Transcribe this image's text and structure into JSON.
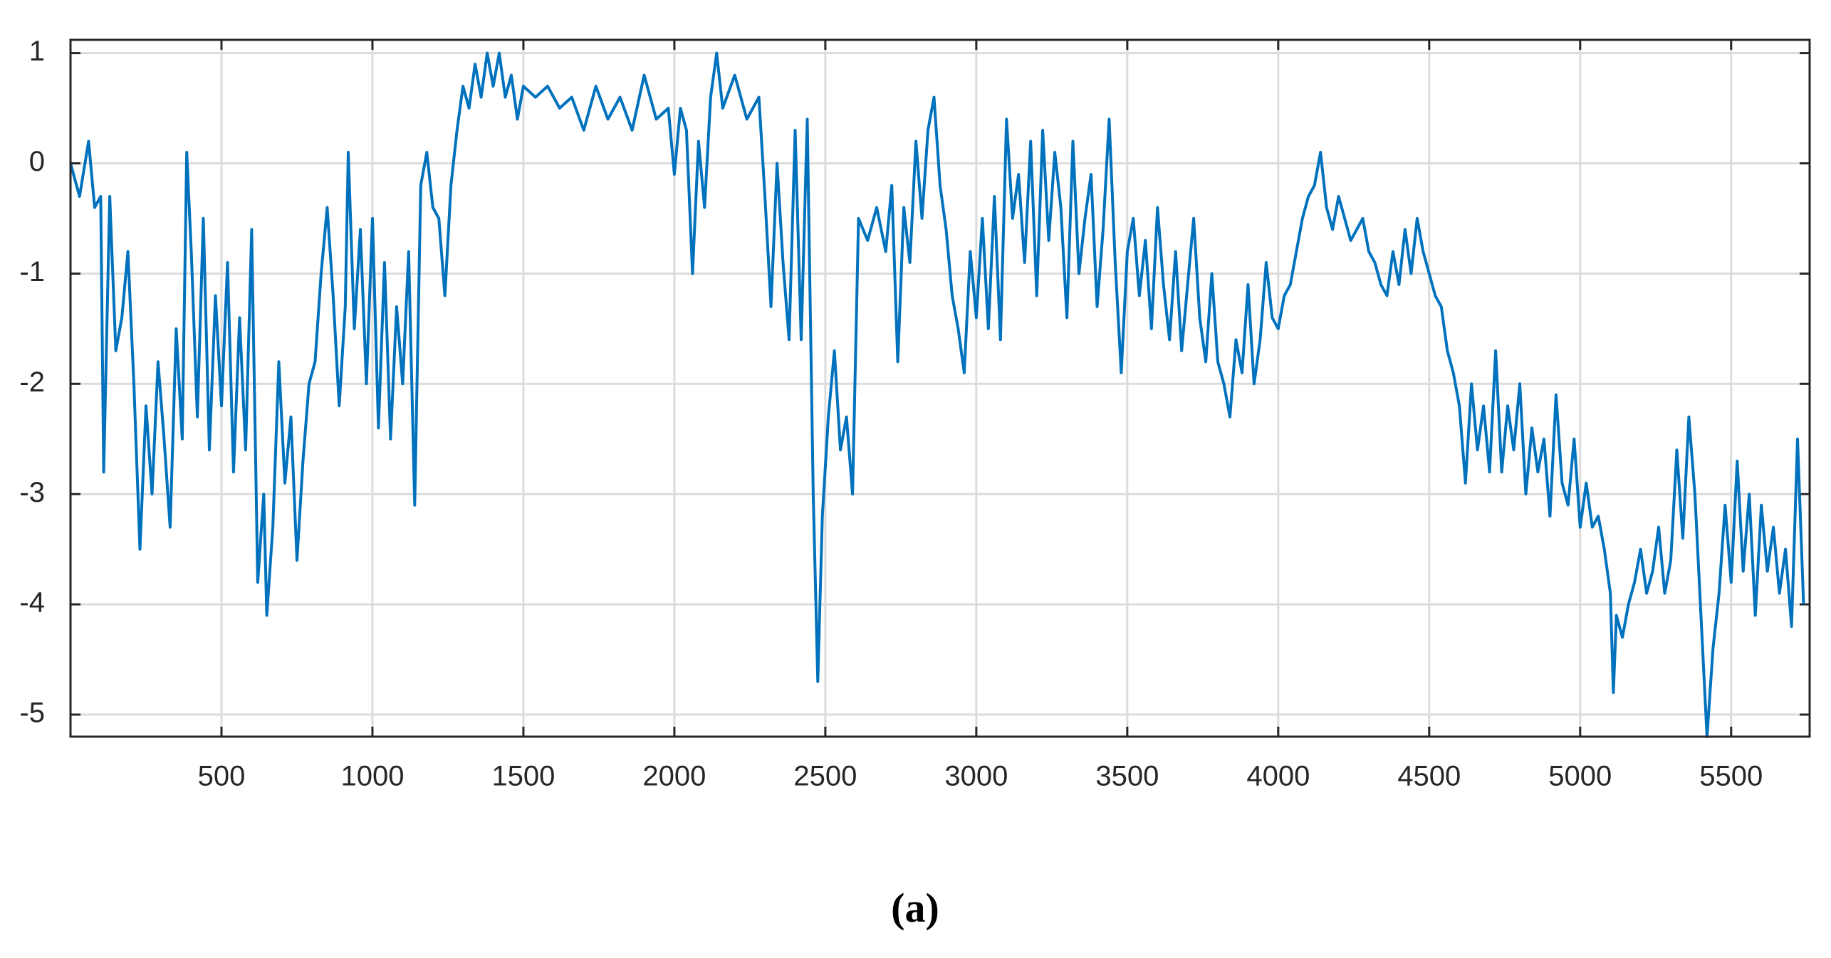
{
  "chart_data": {
    "type": "line",
    "caption": "(a)",
    "color": "#0072bd",
    "grid": true,
    "xlim": [
      0,
      5760
    ],
    "ylim": [
      -5.2,
      1.12
    ],
    "xticks": [
      500,
      1000,
      1500,
      2000,
      2500,
      3000,
      3500,
      4000,
      4500,
      5000,
      5500
    ],
    "yticks": [
      -5,
      -4,
      -3,
      -2,
      -1,
      0,
      1
    ],
    "x": [
      0,
      30,
      60,
      80,
      100,
      110,
      130,
      150,
      170,
      190,
      210,
      230,
      250,
      270,
      290,
      310,
      330,
      350,
      370,
      385,
      400,
      420,
      440,
      460,
      480,
      500,
      520,
      540,
      560,
      580,
      600,
      620,
      640,
      650,
      670,
      690,
      710,
      730,
      750,
      770,
      790,
      810,
      830,
      850,
      870,
      890,
      910,
      920,
      940,
      960,
      980,
      1000,
      1020,
      1040,
      1060,
      1080,
      1100,
      1120,
      1140,
      1160,
      1180,
      1200,
      1220,
      1240,
      1260,
      1280,
      1300,
      1320,
      1340,
      1360,
      1380,
      1400,
      1420,
      1440,
      1460,
      1480,
      1500,
      1540,
      1580,
      1620,
      1660,
      1700,
      1740,
      1780,
      1820,
      1860,
      1900,
      1940,
      1980,
      2000,
      2020,
      2040,
      2060,
      2080,
      2100,
      2120,
      2140,
      2160,
      2200,
      2240,
      2280,
      2300,
      2320,
      2340,
      2360,
      2380,
      2400,
      2420,
      2440,
      2460,
      2475,
      2490,
      2510,
      2530,
      2550,
      2570,
      2590,
      2610,
      2640,
      2670,
      2700,
      2720,
      2740,
      2760,
      2780,
      2800,
      2820,
      2840,
      2860,
      2880,
      2900,
      2920,
      2940,
      2960,
      2980,
      3000,
      3020,
      3040,
      3060,
      3080,
      3100,
      3120,
      3140,
      3160,
      3180,
      3200,
      3220,
      3240,
      3260,
      3280,
      3300,
      3320,
      3340,
      3360,
      3380,
      3400,
      3420,
      3440,
      3460,
      3480,
      3500,
      3520,
      3540,
      3560,
      3580,
      3600,
      3620,
      3640,
      3660,
      3680,
      3700,
      3720,
      3740,
      3760,
      3780,
      3800,
      3820,
      3840,
      3860,
      3880,
      3900,
      3920,
      3940,
      3960,
      3980,
      4000,
      4020,
      4040,
      4060,
      4080,
      4100,
      4120,
      4140,
      4160,
      4180,
      4200,
      4220,
      4240,
      4260,
      4280,
      4300,
      4320,
      4340,
      4360,
      4380,
      4400,
      4420,
      4440,
      4460,
      4480,
      4500,
      4520,
      4540,
      4560,
      4580,
      4600,
      4620,
      4640,
      4660,
      4680,
      4700,
      4720,
      4740,
      4760,
      4780,
      4800,
      4820,
      4840,
      4860,
      4880,
      4900,
      4920,
      4940,
      4960,
      4980,
      5000,
      5020,
      5040,
      5060,
      5080,
      5100,
      5110,
      5120,
      5140,
      5160,
      5180,
      5200,
      5220,
      5240,
      5260,
      5280,
      5300,
      5320,
      5340,
      5360,
      5380,
      5400,
      5420,
      5440,
      5460,
      5480,
      5500,
      5520,
      5540,
      5560,
      5580,
      5600,
      5620,
      5640,
      5660,
      5680,
      5700,
      5720,
      5740
    ],
    "values": [
      0.0,
      -0.3,
      0.2,
      -0.4,
      -0.3,
      -2.8,
      -0.3,
      -1.7,
      -1.4,
      -0.8,
      -2.0,
      -3.5,
      -2.2,
      -3.0,
      -1.8,
      -2.5,
      -3.3,
      -1.5,
      -2.5,
      0.1,
      -0.8,
      -2.3,
      -0.5,
      -2.6,
      -1.2,
      -2.2,
      -0.9,
      -2.8,
      -1.4,
      -2.6,
      -0.6,
      -3.8,
      -3.0,
      -4.1,
      -3.3,
      -1.8,
      -2.9,
      -2.3,
      -3.6,
      -2.7,
      -2.0,
      -1.8,
      -1.0,
      -0.4,
      -1.2,
      -2.2,
      -1.3,
      0.1,
      -1.5,
      -0.6,
      -2.0,
      -0.5,
      -2.4,
      -0.9,
      -2.5,
      -1.3,
      -2.0,
      -0.8,
      -3.1,
      -0.2,
      0.1,
      -0.4,
      -0.5,
      -1.2,
      -0.2,
      0.3,
      0.7,
      0.5,
      0.9,
      0.6,
      1.0,
      0.7,
      1.0,
      0.6,
      0.8,
      0.4,
      0.7,
      0.6,
      0.7,
      0.5,
      0.6,
      0.3,
      0.7,
      0.4,
      0.6,
      0.3,
      0.8,
      0.4,
      0.5,
      -0.1,
      0.5,
      0.3,
      -1.0,
      0.2,
      -0.4,
      0.6,
      1.0,
      0.5,
      0.8,
      0.4,
      0.6,
      -0.3,
      -1.3,
      0.0,
      -0.9,
      -1.6,
      0.3,
      -1.6,
      0.4,
      -3.0,
      -4.7,
      -3.2,
      -2.3,
      -1.7,
      -2.6,
      -2.3,
      -3.0,
      -0.5,
      -0.7,
      -0.4,
      -0.8,
      -0.2,
      -1.8,
      -0.4,
      -0.9,
      0.2,
      -0.5,
      0.3,
      0.6,
      -0.2,
      -0.6,
      -1.2,
      -1.5,
      -1.9,
      -0.8,
      -1.4,
      -0.5,
      -1.5,
      -0.3,
      -1.6,
      0.4,
      -0.5,
      -0.1,
      -0.9,
      0.2,
      -1.2,
      0.3,
      -0.7,
      0.1,
      -0.4,
      -1.4,
      0.2,
      -1.0,
      -0.5,
      -0.1,
      -1.3,
      -0.6,
      0.4,
      -0.9,
      -1.9,
      -0.8,
      -0.5,
      -1.2,
      -0.7,
      -1.5,
      -0.4,
      -1.1,
      -1.6,
      -0.8,
      -1.7,
      -1.1,
      -0.5,
      -1.4,
      -1.8,
      -1.0,
      -1.8,
      -2.0,
      -2.3,
      -1.6,
      -1.9,
      -1.1,
      -2.0,
      -1.6,
      -0.9,
      -1.4,
      -1.5,
      -1.2,
      -1.1,
      -0.8,
      -0.5,
      -0.3,
      -0.2,
      0.1,
      -0.4,
      -0.6,
      -0.3,
      -0.5,
      -0.7,
      -0.6,
      -0.5,
      -0.8,
      -0.9,
      -1.1,
      -1.2,
      -0.8,
      -1.1,
      -0.6,
      -1.0,
      -0.5,
      -0.8,
      -1.0,
      -1.2,
      -1.3,
      -1.7,
      -1.9,
      -2.2,
      -2.9,
      -2.0,
      -2.6,
      -2.2,
      -2.8,
      -1.7,
      -2.8,
      -2.2,
      -2.6,
      -2.0,
      -3.0,
      -2.4,
      -2.8,
      -2.5,
      -3.2,
      -2.1,
      -2.9,
      -3.1,
      -2.5,
      -3.3,
      -2.9,
      -3.3,
      -3.2,
      -3.5,
      -3.9,
      -4.8,
      -4.1,
      -4.3,
      -4.0,
      -3.8,
      -3.5,
      -3.9,
      -3.7,
      -3.3,
      -3.9,
      -3.6,
      -2.6,
      -3.4,
      -2.3,
      -3.0,
      -4.1,
      -5.2,
      -4.4,
      -3.9,
      -3.1,
      -3.8,
      -2.7,
      -3.7,
      -3.0,
      -4.1,
      -3.1,
      -3.7,
      -3.3,
      -3.9,
      -3.5,
      -4.2,
      -2.5,
      -4.0
    ]
  }
}
